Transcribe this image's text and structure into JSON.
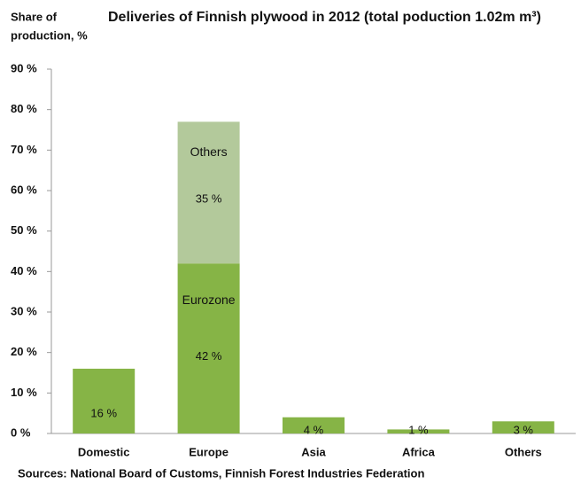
{
  "chart_data": {
    "type": "stacked_bar",
    "title": "Deliveries of Finnish plywood in 2012 (total poduction 1.02m m³)",
    "y_label": [
      "Share of",
      "production, %"
    ],
    "source": "Sources: National Board of Customs, Finnish Forest Industries Federation",
    "categories": [
      "Domestic",
      "Europe",
      "Asia",
      "Africa",
      "Others"
    ],
    "series": [
      {
        "name": "Eurozone",
        "color": "#86b446",
        "values": [
          16,
          42,
          4,
          1,
          3
        ],
        "value_labels": [
          "16 %",
          "42 %",
          "4 %",
          "1 %",
          "3 %"
        ]
      },
      {
        "name": "Others",
        "color": "#b3c99b",
        "values": [
          null,
          35,
          null,
          null,
          null
        ],
        "value_labels": [
          null,
          "35 %",
          null,
          null,
          null
        ]
      }
    ],
    "ylim": [
      0,
      90
    ],
    "yticks": [
      {
        "value": 0,
        "label": "0 %"
      },
      {
        "value": 10,
        "label": "10 %"
      },
      {
        "value": 20,
        "label": "20 %"
      },
      {
        "value": 30,
        "label": "30 %"
      },
      {
        "value": 40,
        "label": "40 %"
      },
      {
        "value": 50,
        "label": "50 %"
      },
      {
        "value": 60,
        "label": "60 %"
      },
      {
        "value": 70,
        "label": "70 %"
      },
      {
        "value": 80,
        "label": "80 %"
      },
      {
        "value": 90,
        "label": "90 %"
      }
    ],
    "grid": false
  }
}
